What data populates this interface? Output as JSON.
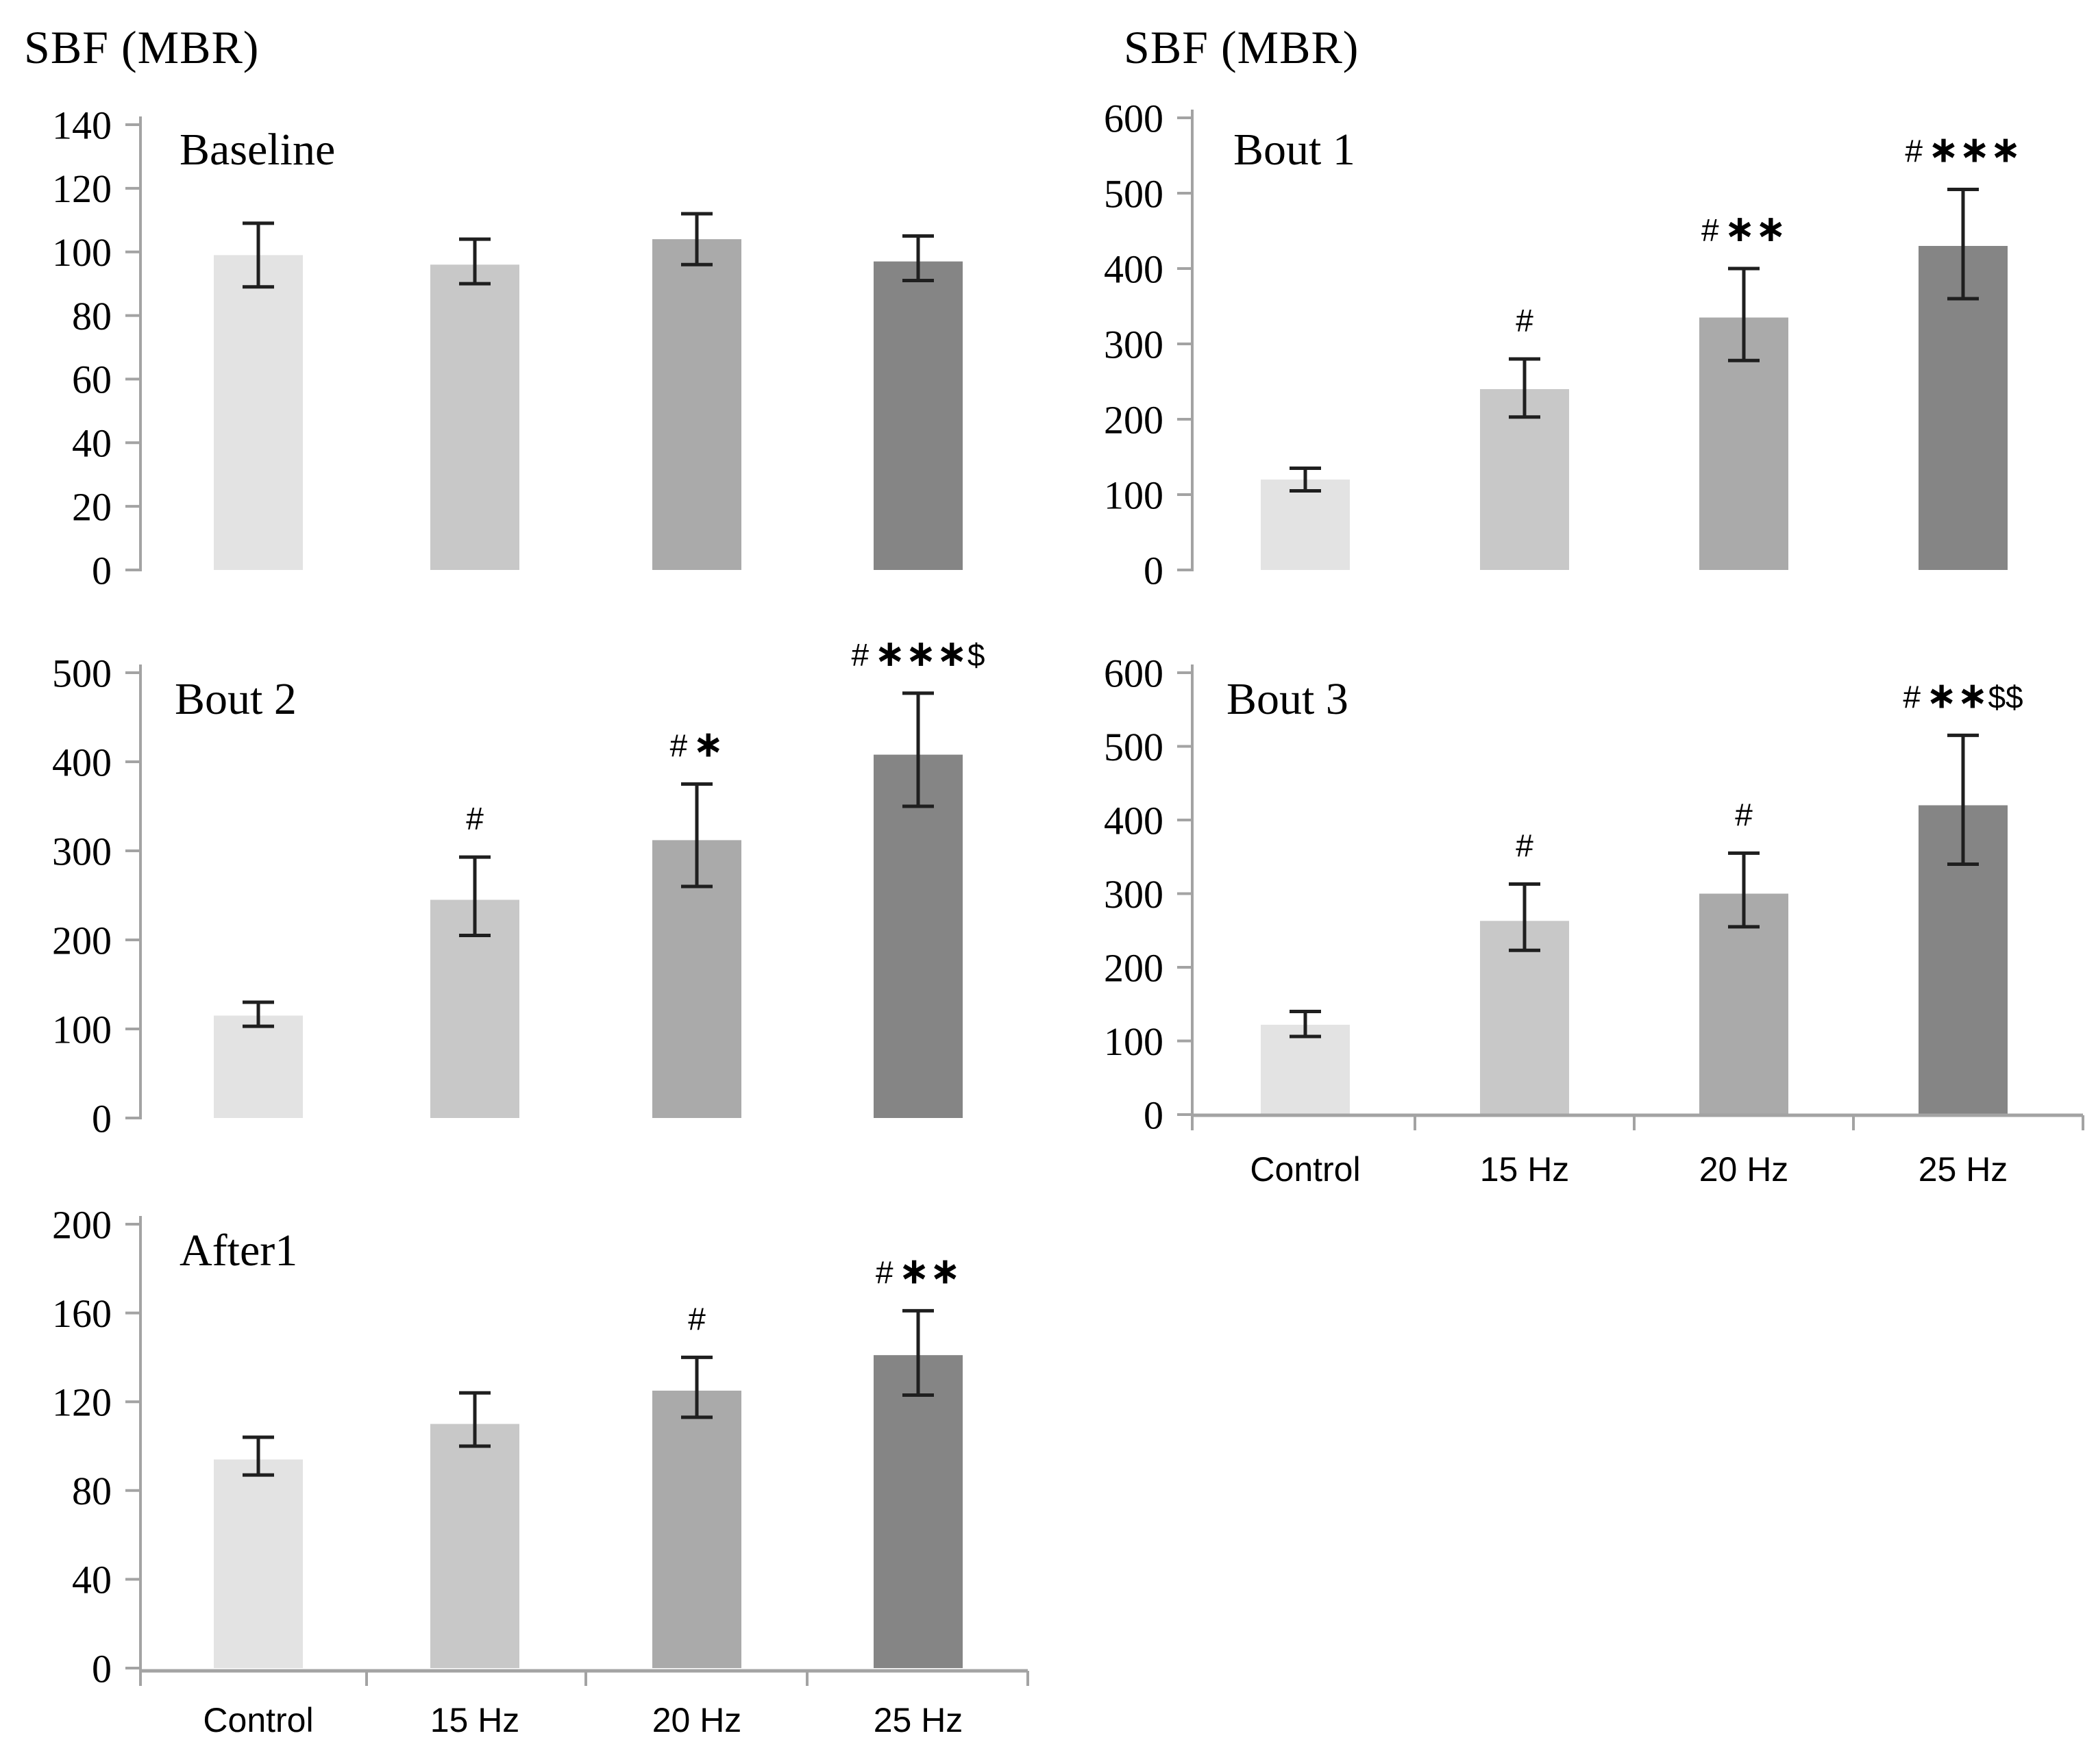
{
  "figure": {
    "description": "Five bar chart panels of skin blood flow (SBF, mean blur rate) across stimulation conditions",
    "panel_order": [
      "Baseline",
      "Bout 1",
      "Bout 2",
      "Bout 3",
      "After1"
    ],
    "header_left": "SBF (MBR)",
    "header_right": "SBF (MBR)"
  },
  "colors": {
    "bars": [
      "#e3e3e3",
      "#c8c8c8",
      "#aaaaaa",
      "#858585"
    ],
    "axis": "#a3a3a3",
    "error_bar": "#1f1f1f",
    "text": "#000000",
    "xlabel_text": "#1a1a1a"
  },
  "chart_data": [
    {
      "type": "bar",
      "title": "Baseline",
      "ylabel": "SBF (MBR)",
      "xlabel": "",
      "ylim": [
        0,
        140
      ],
      "yticks": [
        0,
        20,
        40,
        60,
        80,
        100,
        120,
        140
      ],
      "categories": [
        "Control",
        "15 Hz",
        "20 Hz",
        "25 Hz"
      ],
      "values": [
        99,
        96,
        104,
        97
      ],
      "err_low": [
        89,
        90,
        96,
        91
      ],
      "err_high": [
        109,
        104,
        112,
        105
      ],
      "annotations": [
        "",
        "",
        "",
        ""
      ],
      "x_tick_labels_visible": false,
      "grid": false,
      "legend": "none"
    },
    {
      "type": "bar",
      "title": "Bout 1",
      "ylabel": "SBF (MBR)",
      "xlabel": "",
      "ylim": [
        0,
        600
      ],
      "yticks": [
        0,
        100,
        200,
        300,
        400,
        500,
        600
      ],
      "categories": [
        "Control",
        "15 Hz",
        "20 Hz",
        "25 Hz"
      ],
      "values": [
        120,
        240,
        335,
        430
      ],
      "err_low": [
        105,
        203,
        278,
        360
      ],
      "err_high": [
        135,
        280,
        400,
        505
      ],
      "annotations": [
        "",
        "#",
        "#**",
        "#***"
      ],
      "x_tick_labels_visible": false,
      "grid": false,
      "legend": "none"
    },
    {
      "type": "bar",
      "title": "Bout 2",
      "ylabel": "",
      "xlabel": "",
      "ylim": [
        0,
        500
      ],
      "yticks": [
        0,
        100,
        200,
        300,
        400,
        500
      ],
      "categories": [
        "Control",
        "15 Hz",
        "20 Hz",
        "25 Hz"
      ],
      "values": [
        115,
        245,
        312,
        408
      ],
      "err_low": [
        103,
        205,
        260,
        350
      ],
      "err_high": [
        130,
        293,
        375,
        477
      ],
      "annotations": [
        "",
        "#",
        "#*",
        "#***$"
      ],
      "x_tick_labels_visible": false,
      "grid": false,
      "legend": "none"
    },
    {
      "type": "bar",
      "title": "Bout 3",
      "ylabel": "",
      "xlabel": "",
      "ylim": [
        0,
        600
      ],
      "yticks": [
        0,
        100,
        200,
        300,
        400,
        500,
        600
      ],
      "categories": [
        "Control",
        "15 Hz",
        "20 Hz",
        "25 Hz"
      ],
      "values": [
        122,
        263,
        300,
        420
      ],
      "err_low": [
        106,
        223,
        255,
        340
      ],
      "err_high": [
        140,
        313,
        355,
        515
      ],
      "annotations": [
        "",
        "#",
        "#",
        "#**$$"
      ],
      "x_tick_labels_visible": true,
      "grid": false,
      "legend": "none"
    },
    {
      "type": "bar",
      "title": "After1",
      "ylabel": "",
      "xlabel": "",
      "ylim": [
        0,
        200
      ],
      "yticks": [
        0,
        40,
        80,
        120,
        160,
        200
      ],
      "categories": [
        "Control",
        "15 Hz",
        "20 Hz",
        "25 Hz"
      ],
      "values": [
        94,
        110,
        125,
        141
      ],
      "err_low": [
        87,
        100,
        113,
        123
      ],
      "err_high": [
        104,
        124,
        140,
        161
      ],
      "annotations": [
        "",
        "",
        "#",
        "#**"
      ],
      "x_tick_labels_visible": true,
      "grid": false,
      "legend": "none"
    }
  ]
}
